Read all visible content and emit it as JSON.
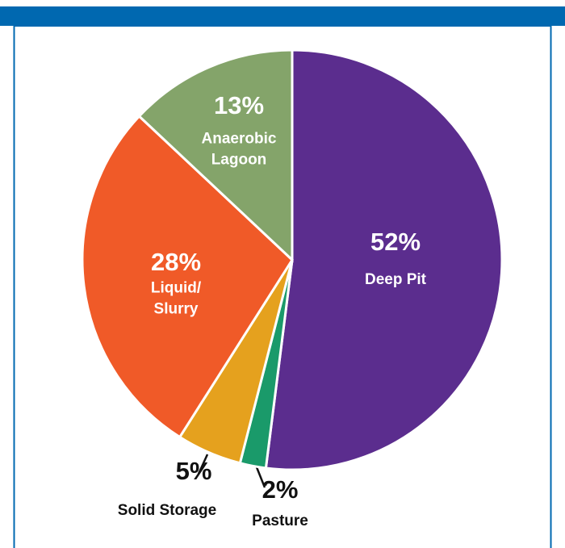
{
  "chart_data": {
    "type": "pie",
    "categories": [
      "Deep Pit",
      "Pasture",
      "Solid Storage",
      "Liquid/ Slurry",
      "Anaerobic Lagoon"
    ],
    "values": [
      52,
      2,
      5,
      28,
      13
    ],
    "value_labels": [
      "52%",
      "2%",
      "5%",
      "28%",
      "13%"
    ],
    "colors": [
      "#5b2d8e",
      "#1a9a6a",
      "#e5a11e",
      "#f05a28",
      "#84a46a"
    ]
  }
}
